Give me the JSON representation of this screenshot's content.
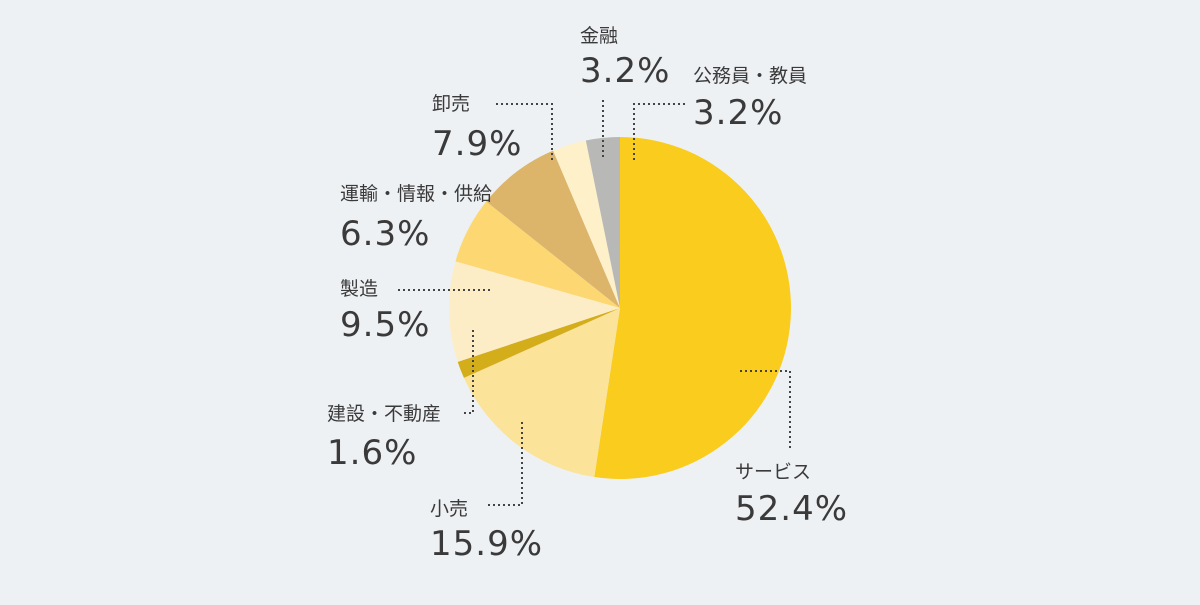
{
  "chart_data": {
    "type": "pie",
    "title": "",
    "start_angle_deg": 0,
    "direction": "clockwise",
    "slices": [
      {
        "label": "サービス",
        "value": 52.4,
        "display": "52.4%",
        "color": "#f9cc1d"
      },
      {
        "label": "小売",
        "value": 15.9,
        "display": "15.9%",
        "color": "#fce39a"
      },
      {
        "label": "建設・不動産",
        "value": 1.6,
        "display": "1.6%",
        "color": "#d4ad1b"
      },
      {
        "label": "製造",
        "value": 9.5,
        "display": "9.5%",
        "color": "#fdedc6"
      },
      {
        "label": "運輸・情報・供給",
        "value": 6.3,
        "display": "6.3%",
        "color": "#fdd872"
      },
      {
        "label": "卸売",
        "value": 7.9,
        "display": "7.9%",
        "color": "#dcb46a"
      },
      {
        "label": "金融",
        "value": 3.2,
        "display": "3.2%",
        "color": "#fef0c9"
      },
      {
        "label": "公務員・教員",
        "value": 3.2,
        "display": "3.2%",
        "color": "#b8b8b6"
      }
    ]
  }
}
